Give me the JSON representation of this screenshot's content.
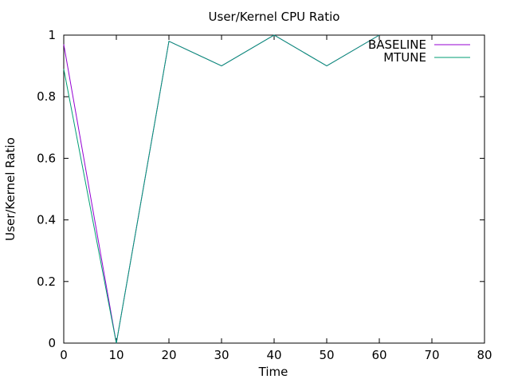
{
  "chart_data": {
    "type": "line",
    "title": "User/Kernel CPU Ratio",
    "xlabel": "Time",
    "ylabel": "User/Kernel Ratio",
    "xlim": [
      0,
      80
    ],
    "ylim": [
      0,
      1
    ],
    "xticks": [
      0,
      10,
      20,
      30,
      40,
      50,
      60,
      70,
      80
    ],
    "yticks": [
      0,
      0.2,
      0.4,
      0.6,
      0.8,
      1
    ],
    "grid": false,
    "legend_position": "top-right",
    "series": [
      {
        "name": "BASELINE",
        "color": "#9400d3",
        "x": [
          0,
          10,
          20,
          30,
          40,
          50,
          60
        ],
        "y": [
          0.97,
          0.0,
          0.98,
          0.9,
          1.0,
          0.9,
          1.0
        ]
      },
      {
        "name": "MTUNE",
        "color": "#009e73",
        "x": [
          0,
          10,
          20,
          30,
          40,
          50,
          60
        ],
        "y": [
          0.89,
          0.0,
          0.98,
          0.9,
          1.0,
          0.9,
          1.0
        ]
      }
    ]
  }
}
